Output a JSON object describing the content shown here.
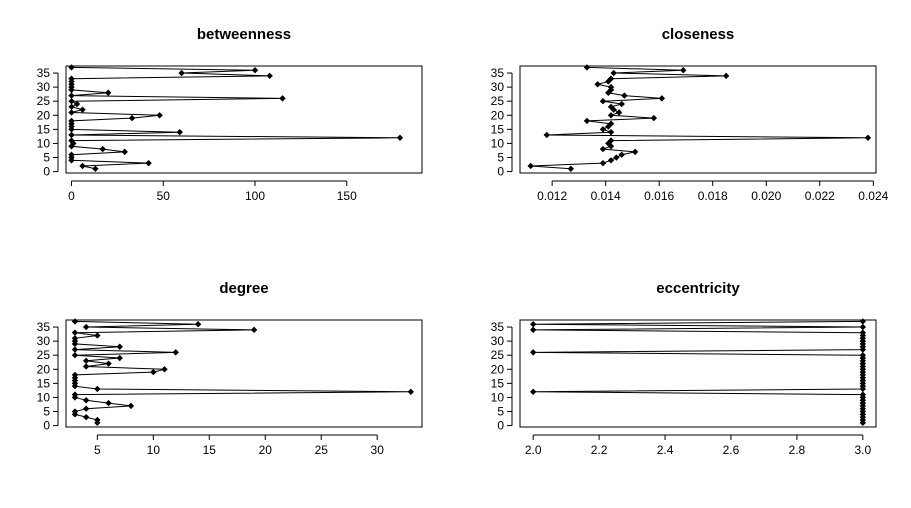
{
  "chart_data": [
    {
      "type": "line",
      "title": "betweenness",
      "xlabel": "",
      "ylabel": "",
      "xlim": [
        -3,
        191
      ],
      "ylim": [
        -0.5,
        37.5
      ],
      "xticks": [
        0,
        50,
        100,
        150
      ],
      "yticks": [
        0,
        5,
        10,
        15,
        20,
        25,
        30,
        35
      ],
      "grid": false,
      "marker": "diamond",
      "y": [
        1,
        2,
        3,
        4,
        5,
        6,
        7,
        8,
        9,
        10,
        11,
        12,
        13,
        14,
        15,
        16,
        17,
        18,
        19,
        20,
        21,
        22,
        23,
        24,
        25,
        26,
        27,
        28,
        29,
        30,
        31,
        32,
        33,
        34,
        35,
        36,
        37
      ],
      "x": [
        13,
        6,
        42,
        0,
        0,
        0,
        29,
        17,
        0,
        1,
        0,
        179,
        0,
        59,
        0,
        0,
        0,
        0,
        33,
        48,
        0,
        6,
        0,
        3,
        0,
        115,
        0,
        20,
        0,
        0,
        0,
        0,
        0,
        108,
        60,
        100,
        0
      ]
    },
    {
      "type": "line",
      "title": "closeness",
      "xlabel": "",
      "ylabel": "",
      "xlim": [
        0.0108,
        0.0241
      ],
      "ylim": [
        -0.5,
        37.5
      ],
      "xticks": [
        0.012,
        0.014,
        0.016,
        0.018,
        0.02,
        0.022,
        0.024
      ],
      "yticks": [
        0,
        5,
        10,
        15,
        20,
        25,
        30,
        35
      ],
      "grid": false,
      "marker": "diamond",
      "y": [
        1,
        2,
        3,
        4,
        5,
        6,
        7,
        8,
        9,
        10,
        11,
        12,
        13,
        14,
        15,
        16,
        17,
        18,
        19,
        20,
        21,
        22,
        23,
        24,
        25,
        26,
        27,
        28,
        29,
        30,
        31,
        32,
        33,
        34,
        35,
        36,
        37
      ],
      "x": [
        0.0127,
        0.0112,
        0.0139,
        0.0142,
        0.0144,
        0.0146,
        0.0151,
        0.0139,
        0.0142,
        0.0141,
        0.0142,
        0.0238,
        0.0118,
        0.0142,
        0.0139,
        0.0141,
        0.0142,
        0.0133,
        0.0158,
        0.0142,
        0.0145,
        0.0143,
        0.0142,
        0.0146,
        0.0139,
        0.0161,
        0.0147,
        0.0141,
        0.0142,
        0.0142,
        0.0137,
        0.0141,
        0.0142,
        0.0185,
        0.0143,
        0.0169,
        0.0133
      ]
    },
    {
      "type": "line",
      "title": "degree",
      "xlabel": "",
      "ylabel": "",
      "xlim": [
        2.2,
        34.0
      ],
      "ylim": [
        -0.5,
        37.5
      ],
      "xticks": [
        5,
        10,
        15,
        20,
        25,
        30
      ],
      "yticks": [
        0,
        5,
        10,
        15,
        20,
        25,
        30,
        35
      ],
      "grid": false,
      "marker": "diamond",
      "y": [
        1,
        2,
        3,
        4,
        5,
        6,
        7,
        8,
        9,
        10,
        11,
        12,
        13,
        14,
        15,
        16,
        17,
        18,
        19,
        20,
        21,
        22,
        23,
        24,
        25,
        26,
        27,
        28,
        29,
        30,
        31,
        32,
        33,
        34,
        35,
        36,
        37
      ],
      "x": [
        5,
        5,
        4,
        3,
        3,
        4,
        8,
        6,
        4,
        3,
        3,
        33,
        5,
        3,
        3,
        3,
        3,
        3,
        10,
        11,
        4,
        6,
        4,
        7,
        3,
        12,
        3,
        7,
        3,
        3,
        3,
        5,
        3,
        19,
        4,
        14,
        3
      ]
    },
    {
      "type": "line",
      "title": "eccentricity",
      "xlabel": "",
      "ylabel": "",
      "xlim": [
        1.96,
        3.04
      ],
      "ylim": [
        -0.5,
        37.5
      ],
      "xticks": [
        2.0,
        2.2,
        2.4,
        2.6,
        2.8,
        3.0
      ],
      "yticks": [
        0,
        5,
        10,
        15,
        20,
        25,
        30,
        35
      ],
      "grid": false,
      "marker": "diamond",
      "y": [
        1,
        2,
        3,
        4,
        5,
        6,
        7,
        8,
        9,
        10,
        11,
        12,
        13,
        14,
        15,
        16,
        17,
        18,
        19,
        20,
        21,
        22,
        23,
        24,
        25,
        26,
        27,
        28,
        29,
        30,
        31,
        32,
        33,
        34,
        35,
        36,
        37
      ],
      "x": [
        3,
        3,
        3,
        3,
        3,
        3,
        3,
        3,
        3,
        3,
        3,
        2,
        3,
        3,
        3,
        3,
        3,
        3,
        3,
        3,
        3,
        3,
        3,
        3,
        3,
        2,
        3,
        3,
        3,
        3,
        3,
        3,
        3,
        2,
        3,
        2,
        3
      ]
    }
  ]
}
